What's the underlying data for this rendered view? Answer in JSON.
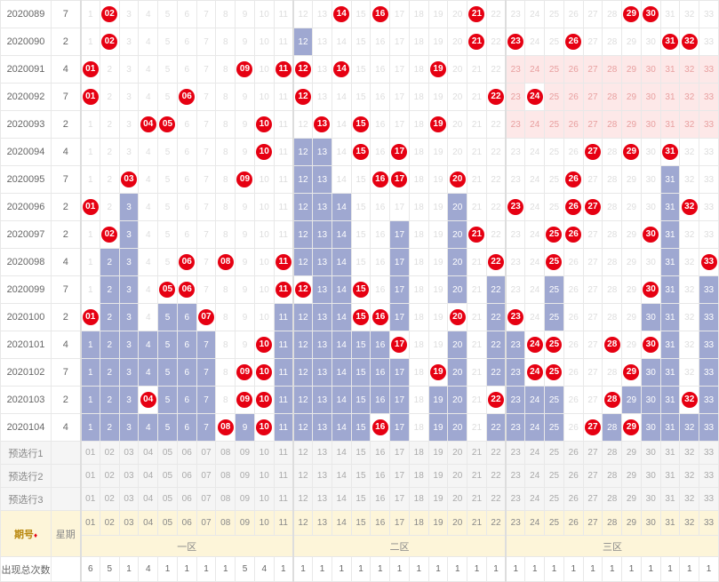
{
  "cols": 33,
  "zone_labels": [
    "一区",
    "二区",
    "三区"
  ],
  "zone_ranges": [
    [
      1,
      11
    ],
    [
      12,
      22
    ],
    [
      23,
      33
    ]
  ],
  "header_period": "期号",
  "header_week": "星期",
  "count_label": "出现总次数",
  "pred_labels": [
    "预选行1",
    "预选行2",
    "预选行3"
  ],
  "rows": [
    {
      "p": "2020089",
      "w": "7",
      "balls": [
        2,
        14,
        16,
        21,
        29,
        30
      ],
      "pink": []
    },
    {
      "p": "2020090",
      "w": "2",
      "balls": [
        2,
        21,
        23,
        26,
        31,
        32
      ],
      "pink": [],
      "miss": [
        12
      ]
    },
    {
      "p": "2020091",
      "w": "4",
      "balls": [
        1,
        9,
        11,
        12,
        14,
        19
      ],
      "pink": [
        23,
        24,
        25,
        26,
        27,
        28,
        29,
        30,
        31,
        32,
        33
      ],
      "miss": []
    },
    {
      "p": "2020092",
      "w": "7",
      "balls": [
        1,
        6,
        12,
        22,
        24
      ],
      "pink": [
        23,
        25,
        26,
        27,
        28,
        29,
        30,
        31,
        32,
        33
      ],
      "miss": []
    },
    {
      "p": "2020093",
      "w": "2",
      "balls": [
        4,
        5,
        10,
        13,
        15,
        19
      ],
      "pink": [
        23,
        24,
        25,
        26,
        27,
        28,
        29,
        30,
        31,
        32,
        33
      ],
      "miss": []
    },
    {
      "p": "2020094",
      "w": "4",
      "balls": [
        10,
        15,
        17,
        27,
        29,
        31
      ],
      "pink": [],
      "miss": [
        12,
        13
      ]
    },
    {
      "p": "2020095",
      "w": "7",
      "balls": [
        3,
        9,
        16,
        17,
        20,
        26
      ],
      "pink": [],
      "miss": [
        12,
        13,
        31
      ]
    },
    {
      "p": "2020096",
      "w": "2",
      "balls": [
        1,
        23,
        26,
        27,
        32
      ],
      "pink": [],
      "miss": [
        3,
        12,
        13,
        14,
        20,
        31
      ]
    },
    {
      "p": "2020097",
      "w": "2",
      "balls": [
        2,
        21,
        25,
        26,
        30
      ],
      "pink": [],
      "miss": [
        3,
        12,
        13,
        14,
        17,
        20,
        31
      ]
    },
    {
      "p": "2020098",
      "w": "4",
      "balls": [
        6,
        8,
        11,
        22,
        25,
        33
      ],
      "pink": [],
      "miss": [
        2,
        3,
        12,
        13,
        14,
        17,
        20,
        31
      ]
    },
    {
      "p": "2020099",
      "w": "7",
      "balls": [
        5,
        6,
        11,
        12,
        15,
        30
      ],
      "pink": [],
      "miss": [
        2,
        3,
        13,
        14,
        17,
        20,
        22,
        25,
        31,
        33
      ]
    },
    {
      "p": "2020100",
      "w": "2",
      "balls": [
        1,
        7,
        15,
        16,
        20,
        23
      ],
      "pink": [],
      "miss": [
        2,
        3,
        5,
        6,
        11,
        12,
        13,
        14,
        17,
        22,
        25,
        30,
        31,
        33
      ]
    },
    {
      "p": "2020101",
      "w": "4",
      "balls": [
        10,
        17,
        24,
        25,
        28,
        30
      ],
      "pink": [],
      "miss": [
        1,
        2,
        3,
        4,
        5,
        6,
        7,
        11,
        12,
        13,
        14,
        15,
        16,
        20,
        22,
        23,
        31,
        33
      ]
    },
    {
      "p": "2020102",
      "w": "7",
      "balls": [
        9,
        10,
        19,
        24,
        25,
        29
      ],
      "pink": [],
      "miss": [
        1,
        2,
        3,
        4,
        5,
        6,
        7,
        11,
        12,
        13,
        14,
        15,
        16,
        17,
        20,
        22,
        23,
        30,
        31,
        33
      ]
    },
    {
      "p": "2020103",
      "w": "2",
      "balls": [
        4,
        9,
        10,
        22,
        28,
        32
      ],
      "pink": [],
      "miss": [
        1,
        2,
        3,
        5,
        6,
        7,
        11,
        12,
        13,
        14,
        15,
        16,
        17,
        19,
        20,
        23,
        24,
        25,
        29,
        30,
        31,
        33
      ]
    },
    {
      "p": "2020104",
      "w": "4",
      "balls": [
        8,
        10,
        16,
        27,
        29
      ],
      "pink": [],
      "miss": [
        1,
        2,
        3,
        4,
        5,
        6,
        7,
        9,
        11,
        12,
        13,
        14,
        15,
        17,
        19,
        20,
        22,
        23,
        24,
        25,
        28,
        30,
        31,
        32,
        33
      ]
    }
  ],
  "counts": [
    6,
    5,
    1,
    4,
    1,
    1,
    1,
    1,
    5,
    4,
    1,
    1,
    1,
    1,
    1,
    1,
    1,
    1,
    1,
    1,
    1,
    1,
    1,
    1,
    1,
    1,
    1,
    1,
    1,
    1,
    1,
    1,
    1
  ]
}
